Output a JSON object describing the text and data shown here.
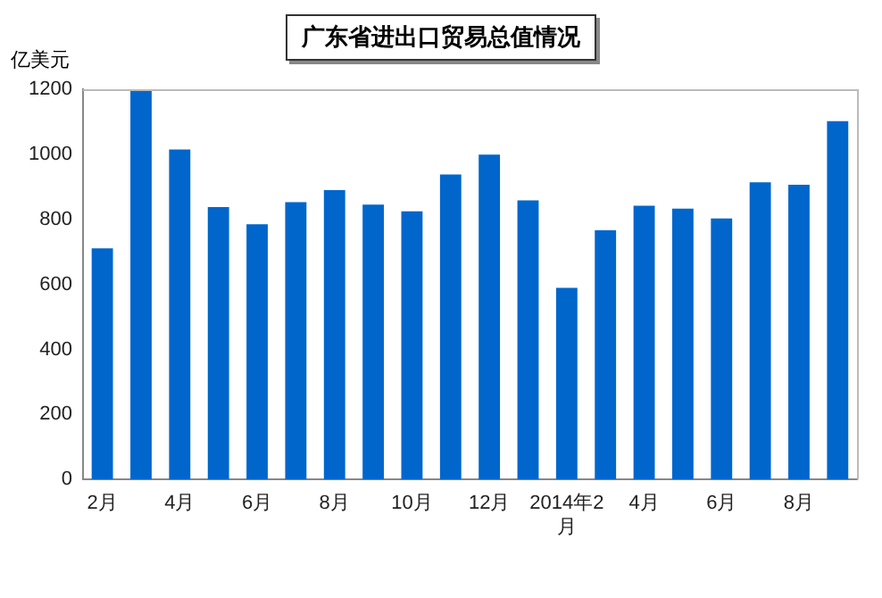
{
  "chart_data": {
    "type": "bar",
    "title": "广东省进出口贸易总值情况",
    "ylabel": "亿美元",
    "categories": [
      "2月",
      null,
      "4月",
      null,
      "6月",
      null,
      "8月",
      null,
      "10月",
      null,
      "12月",
      null,
      "2014年2月",
      null,
      "4月",
      null,
      "6月",
      null,
      "8月",
      null
    ],
    "values": [
      711,
      1200,
      1015,
      838,
      785,
      853,
      890,
      845,
      825,
      938,
      999,
      858,
      589,
      766,
      842,
      833,
      803,
      914,
      906,
      1102
    ],
    "color": "#0066cc",
    "ylim": [
      0,
      1200
    ],
    "yticks": [
      0,
      200,
      400,
      600,
      800,
      1000,
      1200
    ],
    "grid": false,
    "legend": false
  }
}
